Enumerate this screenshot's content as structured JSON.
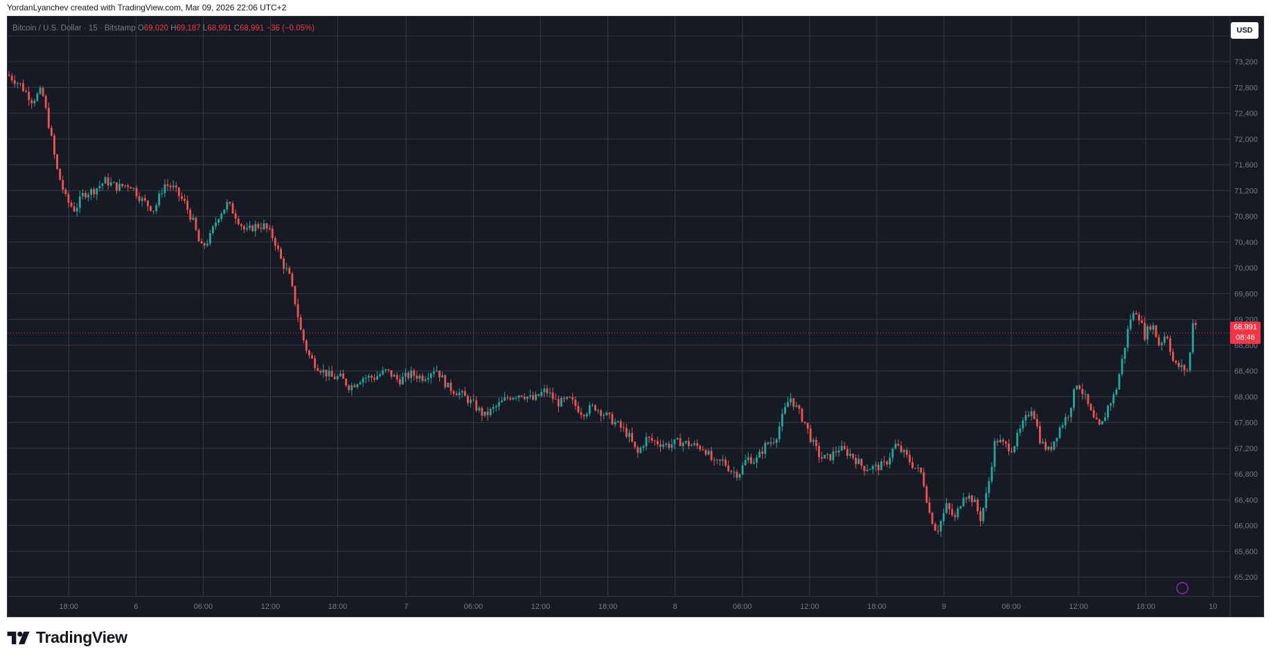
{
  "caption": "YordanLyanchev created with TradingView.com, Mar 09, 2026 22:06 UTC+2",
  "legend": {
    "symbol": "Bitcoin / U.S. Dollar · 15 · Bitstamp",
    "o_label": "O",
    "o_value": "69,020",
    "h_label": "H",
    "h_value": "69,187",
    "l_label": "L",
    "l_value": "68,991",
    "c_label": "C",
    "c_value": "68,991",
    "change": "−36 (−0.05%)"
  },
  "currency_button": "USD",
  "last_price": {
    "value": "68,991",
    "countdown": "08:46"
  },
  "branding": {
    "wordmark": "TradingView"
  },
  "colors": {
    "background": "#161a25",
    "grid": "#363a45",
    "up": "#26a69a",
    "down": "#ef5350",
    "axis_text": "#787b86"
  },
  "chart_data": {
    "type": "candlestick",
    "ylim": [
      64900,
      73900
    ],
    "y_ticks": [
      65200,
      65600,
      66000,
      66400,
      66800,
      67200,
      67600,
      68000,
      68400,
      68800,
      69200,
      69600,
      70000,
      70400,
      70800,
      71200,
      71600,
      72000,
      72400,
      72800,
      73200,
      73600
    ],
    "y_tick_labels": [
      "65,200",
      "65,600",
      "66,000",
      "66,400",
      "66,800",
      "67,200",
      "67,600",
      "68,000",
      "68,400",
      "68,800",
      "69,200",
      "69,600",
      "70,000",
      "70,400",
      "70,800",
      "71,200",
      "71,600",
      "72,000",
      "72,400",
      "72,800",
      "73,200",
      "73,600"
    ],
    "x_ticks": [
      {
        "label": "18:00",
        "t": 0.05
      },
      {
        "label": "6",
        "t": 0.105
      },
      {
        "label": "06:00",
        "t": 0.16
      },
      {
        "label": "12:00",
        "t": 0.215
      },
      {
        "label": "18:00",
        "t": 0.27
      },
      {
        "label": "7",
        "t": 0.326
      },
      {
        "label": "06:00",
        "t": 0.381
      },
      {
        "label": "12:00",
        "t": 0.436
      },
      {
        "label": "18:00",
        "t": 0.491
      },
      {
        "label": "8",
        "t": 0.546
      },
      {
        "label": "06:00",
        "t": 0.601
      },
      {
        "label": "12:00",
        "t": 0.656
      },
      {
        "label": "18:00",
        "t": 0.711
      },
      {
        "label": "9",
        "t": 0.766
      },
      {
        "label": "06:00",
        "t": 0.821
      },
      {
        "label": "12:00",
        "t": 0.876
      },
      {
        "label": "18:00",
        "t": 0.931
      },
      {
        "label": "10",
        "t": 0.986
      }
    ],
    "price_line": 68991,
    "close_path": [
      [
        0.0,
        73000
      ],
      [
        0.01,
        72850
      ],
      [
        0.02,
        72600
      ],
      [
        0.028,
        72750
      ],
      [
        0.035,
        72100
      ],
      [
        0.04,
        71550
      ],
      [
        0.048,
        71050
      ],
      [
        0.055,
        70900
      ],
      [
        0.062,
        71150
      ],
      [
        0.07,
        71200
      ],
      [
        0.08,
        71350
      ],
      [
        0.09,
        71250
      ],
      [
        0.1,
        71300
      ],
      [
        0.11,
        71050
      ],
      [
        0.12,
        70900
      ],
      [
        0.128,
        71300
      ],
      [
        0.135,
        71250
      ],
      [
        0.145,
        71000
      ],
      [
        0.152,
        70700
      ],
      [
        0.158,
        70300
      ],
      [
        0.165,
        70450
      ],
      [
        0.172,
        70800
      ],
      [
        0.18,
        71000
      ],
      [
        0.187,
        70800
      ],
      [
        0.195,
        70550
      ],
      [
        0.202,
        70650
      ],
      [
        0.21,
        70650
      ],
      [
        0.218,
        70450
      ],
      [
        0.224,
        70100
      ],
      [
        0.23,
        69900
      ],
      [
        0.236,
        69400
      ],
      [
        0.24,
        69000
      ],
      [
        0.246,
        68650
      ],
      [
        0.252,
        68500
      ],
      [
        0.258,
        68400
      ],
      [
        0.265,
        68300
      ],
      [
        0.272,
        68300
      ],
      [
        0.28,
        68150
      ],
      [
        0.29,
        68300
      ],
      [
        0.3,
        68300
      ],
      [
        0.31,
        68400
      ],
      [
        0.32,
        68250
      ],
      [
        0.33,
        68350
      ],
      [
        0.34,
        68300
      ],
      [
        0.35,
        68450
      ],
      [
        0.36,
        68150
      ],
      [
        0.37,
        68050
      ],
      [
        0.38,
        67900
      ],
      [
        0.39,
        67700
      ],
      [
        0.4,
        67850
      ],
      [
        0.41,
        68000
      ],
      [
        0.42,
        68050
      ],
      [
        0.43,
        67950
      ],
      [
        0.44,
        68100
      ],
      [
        0.45,
        67900
      ],
      [
        0.46,
        67950
      ],
      [
        0.47,
        67750
      ],
      [
        0.48,
        67850
      ],
      [
        0.49,
        67700
      ],
      [
        0.5,
        67550
      ],
      [
        0.508,
        67400
      ],
      [
        0.515,
        67100
      ],
      [
        0.522,
        67350
      ],
      [
        0.53,
        67300
      ],
      [
        0.54,
        67250
      ],
      [
        0.55,
        67300
      ],
      [
        0.56,
        67250
      ],
      [
        0.57,
        67200
      ],
      [
        0.578,
        66950
      ],
      [
        0.585,
        67000
      ],
      [
        0.592,
        66850
      ],
      [
        0.598,
        66800
      ],
      [
        0.605,
        67050
      ],
      [
        0.612,
        67000
      ],
      [
        0.62,
        67250
      ],
      [
        0.628,
        67350
      ],
      [
        0.634,
        67700
      ],
      [
        0.64,
        68000
      ],
      [
        0.646,
        67800
      ],
      [
        0.652,
        67600
      ],
      [
        0.658,
        67300
      ],
      [
        0.665,
        67050
      ],
      [
        0.672,
        67050
      ],
      [
        0.68,
        67200
      ],
      [
        0.69,
        67100
      ],
      [
        0.7,
        66900
      ],
      [
        0.71,
        66900
      ],
      [
        0.718,
        66950
      ],
      [
        0.726,
        67250
      ],
      [
        0.734,
        67100
      ],
      [
        0.742,
        66900
      ],
      [
        0.748,
        66800
      ],
      [
        0.754,
        66200
      ],
      [
        0.76,
        65900
      ],
      [
        0.768,
        66300
      ],
      [
        0.775,
        66100
      ],
      [
        0.782,
        66500
      ],
      [
        0.79,
        66400
      ],
      [
        0.796,
        66100
      ],
      [
        0.802,
        66600
      ],
      [
        0.808,
        67350
      ],
      [
        0.815,
        67250
      ],
      [
        0.822,
        67200
      ],
      [
        0.83,
        67550
      ],
      [
        0.838,
        67850
      ],
      [
        0.845,
        67300
      ],
      [
        0.852,
        67150
      ],
      [
        0.86,
        67500
      ],
      [
        0.868,
        67750
      ],
      [
        0.875,
        68250
      ],
      [
        0.882,
        67950
      ],
      [
        0.888,
        67650
      ],
      [
        0.894,
        67500
      ],
      [
        0.9,
        67850
      ],
      [
        0.906,
        68050
      ],
      [
        0.912,
        68600
      ],
      [
        0.918,
        69200
      ],
      [
        0.924,
        69350
      ],
      [
        0.93,
        68950
      ],
      [
        0.936,
        69150
      ],
      [
        0.942,
        68800
      ],
      [
        0.948,
        69000
      ],
      [
        0.954,
        68500
      ],
      [
        0.96,
        68450
      ],
      [
        0.966,
        68400
      ],
      [
        0.97,
        69300
      ],
      [
        0.973,
        68991
      ]
    ]
  }
}
